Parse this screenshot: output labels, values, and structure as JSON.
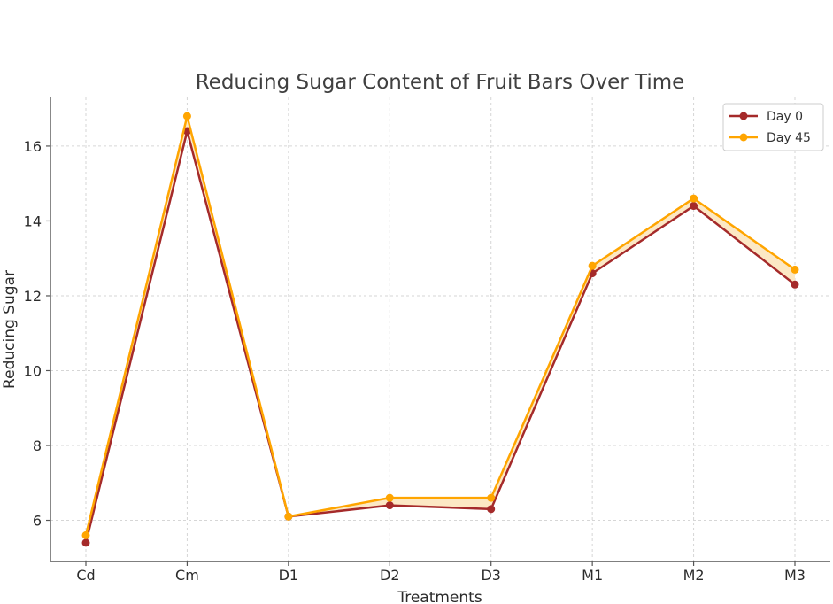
{
  "chart_data": {
    "type": "line",
    "title": "Reducing Sugar Content of Fruit Bars Over Time",
    "xlabel": "Treatments",
    "ylabel": "Reducing Sugar",
    "categories": [
      "Cd",
      "Cm",
      "D1",
      "D2",
      "D3",
      "M1",
      "M2",
      "M3"
    ],
    "ylim": [
      4.9,
      17.3
    ],
    "yticks": [
      6,
      8,
      10,
      12,
      14,
      16
    ],
    "grid": true,
    "legend_position": "top-right",
    "fill_between_series": true,
    "fill_color": "#fce8c4",
    "series": [
      {
        "name": "Day 0",
        "color": "#a52a2a",
        "values": [
          5.4,
          16.4,
          6.1,
          6.4,
          6.3,
          12.6,
          14.4,
          12.3
        ]
      },
      {
        "name": "Day 45",
        "color": "#ffa500",
        "values": [
          5.6,
          16.8,
          6.1,
          6.6,
          6.6,
          12.8,
          14.6,
          12.7
        ]
      }
    ]
  }
}
